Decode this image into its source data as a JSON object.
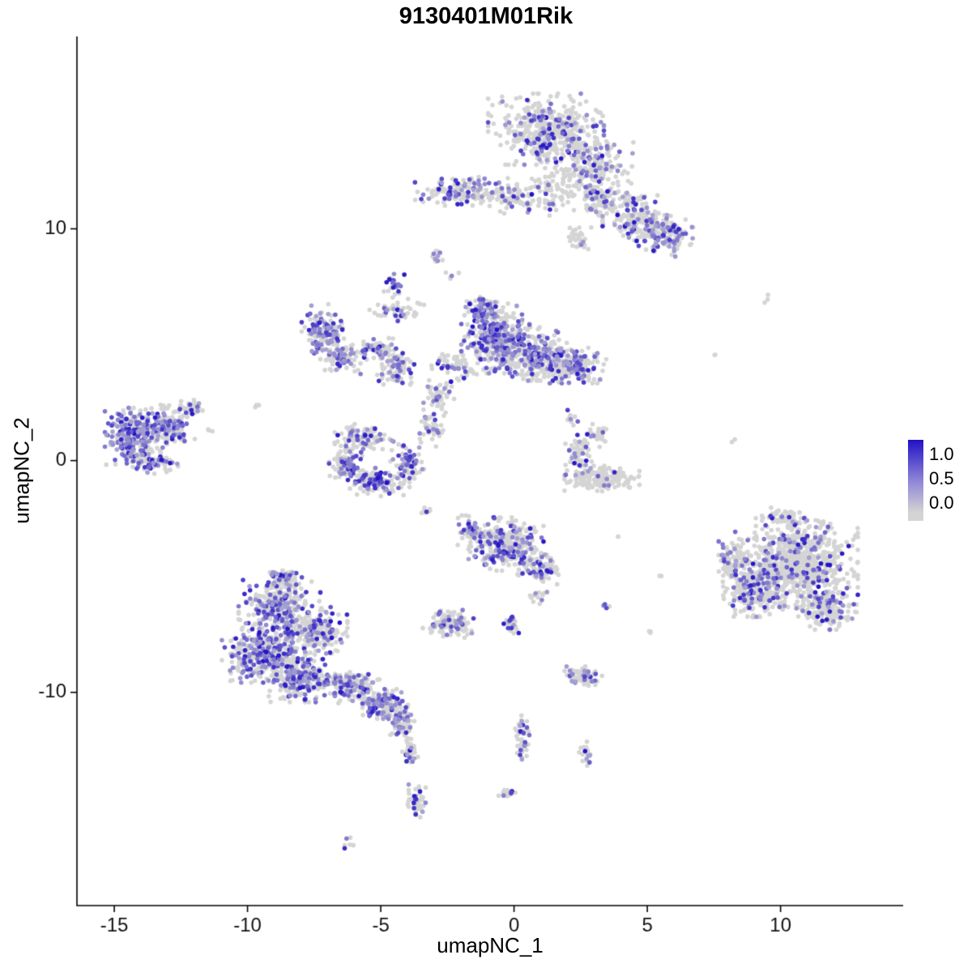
{
  "title": "9130401M01Rik",
  "chart_data": {
    "type": "scatter",
    "title": "9130401M01Rik",
    "xlabel": "umapNC_1",
    "ylabel": "umapNC_2",
    "xlim": [
      -16.4,
      14.6
    ],
    "ylim": [
      -19.2,
      18.3
    ],
    "x_ticks": [
      -15,
      -10,
      -5,
      0,
      5,
      10
    ],
    "y_ticks": [
      -10,
      0,
      10
    ],
    "grid": false,
    "background": "#ffffff",
    "axis_color": "#000000",
    "point_color_low": "#d4d4d4",
    "point_color_high": "#2211c5",
    "point_radius_px": 2.8,
    "legend": {
      "position": "right",
      "tick_labels": [
        "1.0",
        "0.5",
        "0.0"
      ],
      "high_color": "#2211c5",
      "low_color": "#d4d4d4"
    },
    "clusters": [
      {
        "cx": 1.2,
        "cy": 14.3,
        "rx": 1.7,
        "ry": 1.2,
        "n": 420,
        "frac": 0.22
      },
      {
        "cx": 2.9,
        "cy": 12.7,
        "rx": 1.3,
        "ry": 0.9,
        "n": 200,
        "frac": 0.18
      },
      {
        "cx": 1.6,
        "cy": 11.6,
        "rx": 1.3,
        "ry": 0.8,
        "n": 110,
        "frac": 0.12
      },
      {
        "cx": -1.8,
        "cy": 11.6,
        "rx": 1.5,
        "ry": 0.5,
        "n": 160,
        "frac": 0.3
      },
      {
        "cx": -0.2,
        "cy": 11.3,
        "rx": 0.6,
        "ry": 0.5,
        "n": 50,
        "frac": 0.2
      },
      {
        "cx": 3.3,
        "cy": 11.2,
        "rx": 0.7,
        "ry": 0.7,
        "n": 80,
        "frac": 0.2
      },
      {
        "cx": 4.6,
        "cy": 10.5,
        "rx": 1.0,
        "ry": 0.8,
        "n": 170,
        "frac": 0.3
      },
      {
        "cx": 5.7,
        "cy": 9.7,
        "rx": 0.8,
        "ry": 0.7,
        "n": 130,
        "frac": 0.45
      },
      {
        "cx": 2.4,
        "cy": 9.6,
        "rx": 0.4,
        "ry": 0.5,
        "n": 30,
        "frac": 0.2
      },
      {
        "cx": -2.9,
        "cy": 8.8,
        "rx": 0.25,
        "ry": 0.35,
        "n": 12,
        "frac": 0.35
      },
      {
        "cx": -7.2,
        "cy": 5.6,
        "rx": 0.6,
        "ry": 0.9,
        "n": 120,
        "frac": 0.5
      },
      {
        "cx": -6.5,
        "cy": 4.5,
        "rx": 0.6,
        "ry": 0.6,
        "n": 80,
        "frac": 0.35
      },
      {
        "cx": -5.2,
        "cy": 4.8,
        "rx": 0.8,
        "ry": 0.45,
        "n": 70,
        "frac": 0.3
      },
      {
        "cx": -4.4,
        "cy": 3.9,
        "rx": 0.6,
        "ry": 0.6,
        "n": 80,
        "frac": 0.4
      },
      {
        "cx": -4.4,
        "cy": 6.4,
        "rx": 0.8,
        "ry": 0.45,
        "n": 50,
        "frac": 0.25
      },
      {
        "cx": -4.5,
        "cy": 7.6,
        "rx": 0.3,
        "ry": 0.5,
        "n": 30,
        "frac": 0.35
      },
      {
        "cx": -0.7,
        "cy": 5.3,
        "rx": 1.0,
        "ry": 1.2,
        "n": 380,
        "frac": 0.5
      },
      {
        "cx": 0.7,
        "cy": 4.6,
        "rx": 1.0,
        "ry": 0.9,
        "n": 260,
        "frac": 0.32
      },
      {
        "cx": 2.2,
        "cy": 4.1,
        "rx": 1.0,
        "ry": 0.6,
        "n": 210,
        "frac": 0.38
      },
      {
        "cx": -1.3,
        "cy": 6.5,
        "rx": 0.5,
        "ry": 0.5,
        "n": 60,
        "frac": 0.4
      },
      {
        "cx": -2.2,
        "cy": 4.1,
        "rx": 0.7,
        "ry": 0.5,
        "n": 60,
        "frac": 0.3
      },
      {
        "cx": -2.8,
        "cy": 2.7,
        "rx": 0.5,
        "ry": 0.6,
        "n": 50,
        "frac": 0.3
      },
      {
        "cx": -3.1,
        "cy": 1.5,
        "rx": 0.4,
        "ry": 0.7,
        "n": 45,
        "frac": 0.3
      },
      {
        "cx": -5.6,
        "cy": 1.0,
        "rx": 0.9,
        "ry": 0.45,
        "n": 90,
        "frac": 0.25
      },
      {
        "cx": -6.3,
        "cy": 0.0,
        "rx": 0.5,
        "ry": 0.7,
        "n": 90,
        "frac": 0.3
      },
      {
        "cx": -5.2,
        "cy": -0.9,
        "rx": 1.0,
        "ry": 0.5,
        "n": 130,
        "frac": 0.35
      },
      {
        "cx": -4.0,
        "cy": -0.1,
        "rx": 0.5,
        "ry": 0.7,
        "n": 80,
        "frac": 0.35
      },
      {
        "cx": -14.2,
        "cy": 1.0,
        "rx": 0.9,
        "ry": 1.0,
        "n": 300,
        "frac": 0.55
      },
      {
        "cx": -13.0,
        "cy": 1.6,
        "rx": 0.8,
        "ry": 0.8,
        "n": 130,
        "frac": 0.3
      },
      {
        "cx": -13.5,
        "cy": -0.1,
        "rx": 0.7,
        "ry": 0.4,
        "n": 60,
        "frac": 0.3
      },
      {
        "cx": -12.2,
        "cy": 2.3,
        "rx": 0.4,
        "ry": 0.4,
        "n": 40,
        "frac": 0.12
      },
      {
        "cx": -11.4,
        "cy": 1.3,
        "rx": 0.15,
        "ry": 0.15,
        "n": 3,
        "frac": 0.0
      },
      {
        "cx": 3.3,
        "cy": -0.8,
        "rx": 1.1,
        "ry": 0.45,
        "n": 170,
        "frac": 0.08
      },
      {
        "cx": 2.4,
        "cy": 0.2,
        "rx": 0.4,
        "ry": 0.8,
        "n": 70,
        "frac": 0.22
      },
      {
        "cx": 3.1,
        "cy": 1.1,
        "rx": 0.4,
        "ry": 0.4,
        "n": 30,
        "frac": 0.15
      },
      {
        "cx": 2.1,
        "cy": 1.9,
        "rx": 0.3,
        "ry": 0.3,
        "n": 10,
        "frac": 0.1
      },
      {
        "cx": -0.3,
        "cy": -3.6,
        "rx": 1.1,
        "ry": 0.9,
        "n": 300,
        "frac": 0.28
      },
      {
        "cx": 0.9,
        "cy": -4.7,
        "rx": 0.6,
        "ry": 0.5,
        "n": 90,
        "frac": 0.25
      },
      {
        "cx": -1.6,
        "cy": -3.0,
        "rx": 0.4,
        "ry": 0.5,
        "n": 50,
        "frac": 0.35
      },
      {
        "cx": 0.9,
        "cy": -5.9,
        "rx": 0.3,
        "ry": 0.3,
        "n": 12,
        "frac": 0.2
      },
      {
        "cx": -2.4,
        "cy": -7.0,
        "rx": 0.8,
        "ry": 0.5,
        "n": 100,
        "frac": 0.3
      },
      {
        "cx": -0.1,
        "cy": -7.1,
        "rx": 0.3,
        "ry": 0.4,
        "n": 25,
        "frac": 0.3
      },
      {
        "cx": -8.8,
        "cy": -6.3,
        "rx": 1.2,
        "ry": 0.9,
        "n": 280,
        "frac": 0.35
      },
      {
        "cx": -9.3,
        "cy": -8.3,
        "rx": 1.3,
        "ry": 1.0,
        "n": 350,
        "frac": 0.4
      },
      {
        "cx": -8.0,
        "cy": -9.4,
        "rx": 1.0,
        "ry": 0.8,
        "n": 240,
        "frac": 0.4
      },
      {
        "cx": -7.4,
        "cy": -7.3,
        "rx": 0.9,
        "ry": 0.8,
        "n": 200,
        "frac": 0.35
      },
      {
        "cx": -6.2,
        "cy": -9.7,
        "rx": 0.9,
        "ry": 0.6,
        "n": 150,
        "frac": 0.35
      },
      {
        "cx": -4.9,
        "cy": -10.5,
        "rx": 0.8,
        "ry": 0.5,
        "n": 150,
        "frac": 0.45
      },
      {
        "cx": -8.6,
        "cy": -5.1,
        "rx": 0.5,
        "ry": 0.4,
        "n": 60,
        "frac": 0.3
      },
      {
        "cx": -4.2,
        "cy": -11.3,
        "rx": 0.4,
        "ry": 0.5,
        "n": 60,
        "frac": 0.4
      },
      {
        "cx": -3.9,
        "cy": -12.6,
        "rx": 0.25,
        "ry": 0.6,
        "n": 40,
        "frac": 0.2
      },
      {
        "cx": -3.7,
        "cy": -14.7,
        "rx": 0.3,
        "ry": 0.7,
        "n": 50,
        "frac": 0.3
      },
      {
        "cx": -6.1,
        "cy": -16.5,
        "rx": 0.2,
        "ry": 0.2,
        "n": 6,
        "frac": 0.3
      },
      {
        "cx": 10.6,
        "cy": -4.4,
        "rx": 1.8,
        "ry": 1.5,
        "n": 700,
        "frac": 0.16
      },
      {
        "cx": 9.0,
        "cy": -5.6,
        "rx": 0.9,
        "ry": 0.9,
        "n": 250,
        "frac": 0.2
      },
      {
        "cx": 11.7,
        "cy": -6.4,
        "rx": 0.9,
        "ry": 0.7,
        "n": 180,
        "frac": 0.18
      },
      {
        "cx": 10.2,
        "cy": -2.5,
        "rx": 0.7,
        "ry": 0.4,
        "n": 70,
        "frac": 0.12
      },
      {
        "cx": 8.2,
        "cy": -4.4,
        "rx": 0.5,
        "ry": 0.8,
        "n": 90,
        "frac": 0.2
      },
      {
        "cx": 8.3,
        "cy": 0.8,
        "rx": 0.15,
        "ry": 0.15,
        "n": 2,
        "frac": 0.0
      },
      {
        "cx": 9.4,
        "cy": 6.9,
        "rx": 0.2,
        "ry": 0.3,
        "n": 3,
        "frac": 0.0
      },
      {
        "cx": 7.6,
        "cy": 4.6,
        "rx": 0.15,
        "ry": 0.15,
        "n": 2,
        "frac": 0.0
      },
      {
        "cx": 2.6,
        "cy": -9.3,
        "rx": 0.55,
        "ry": 0.35,
        "n": 70,
        "frac": 0.3
      },
      {
        "cx": 0.3,
        "cy": -11.9,
        "rx": 0.25,
        "ry": 0.8,
        "n": 45,
        "frac": 0.3
      },
      {
        "cx": 2.7,
        "cy": -12.6,
        "rx": 0.2,
        "ry": 0.45,
        "n": 20,
        "frac": 0.45
      },
      {
        "cx": -0.2,
        "cy": -14.4,
        "rx": 0.3,
        "ry": 0.3,
        "n": 14,
        "frac": 0.3
      },
      {
        "cx": 3.4,
        "cy": -6.3,
        "rx": 0.15,
        "ry": 0.15,
        "n": 4,
        "frac": 0.7
      },
      {
        "cx": 5.1,
        "cy": -7.4,
        "rx": 0.12,
        "ry": 0.12,
        "n": 3,
        "frac": 0.7
      },
      {
        "cx": 5.5,
        "cy": -5.0,
        "rx": 0.12,
        "ry": 0.12,
        "n": 2,
        "frac": 0.0
      },
      {
        "cx": 3.9,
        "cy": -3.3,
        "rx": 0.12,
        "ry": 0.12,
        "n": 2,
        "frac": 0.0
      },
      {
        "cx": -3.3,
        "cy": -2.2,
        "rx": 0.2,
        "ry": 0.3,
        "n": 8,
        "frac": 0.2
      },
      {
        "cx": -2.3,
        "cy": 8.0,
        "rx": 0.2,
        "ry": 0.2,
        "n": 5,
        "frac": 0.2
      },
      {
        "cx": -9.6,
        "cy": 2.4,
        "rx": 0.15,
        "ry": 0.15,
        "n": 3,
        "frac": 0.0
      }
    ]
  }
}
